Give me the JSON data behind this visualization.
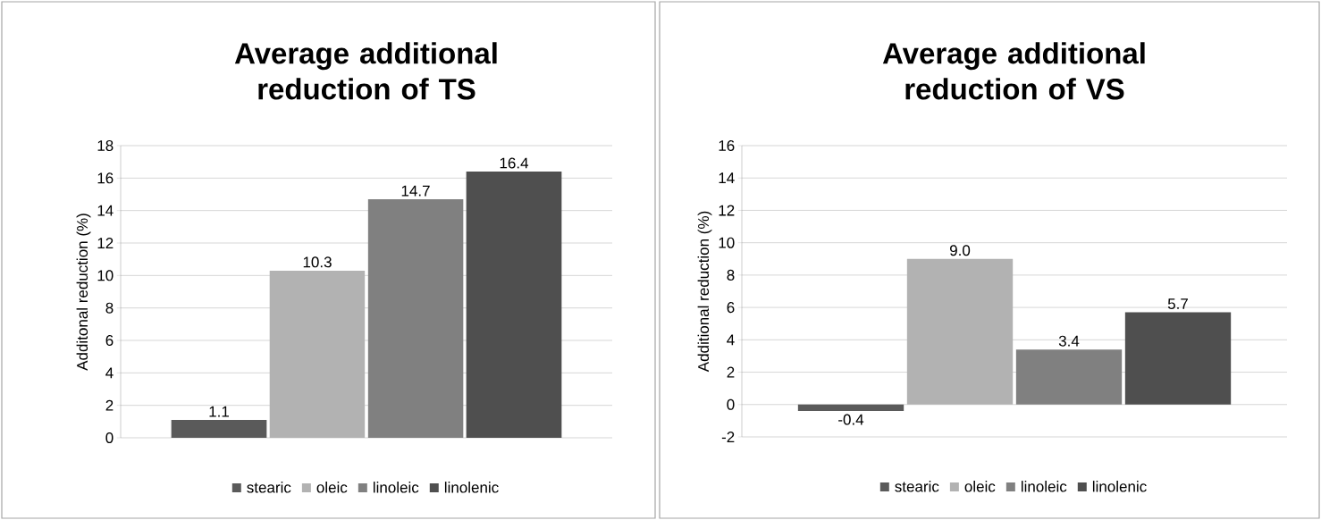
{
  "chart_data": [
    {
      "type": "bar",
      "title": "Average additional reduction of TS",
      "ylabel": "Additonal reduction (%)",
      "categories": [
        null
      ],
      "series": [
        {
          "name": "stearic",
          "color": "#5a5a5a",
          "values": [
            1.1
          ],
          "value_labels": [
            "1.1"
          ]
        },
        {
          "name": "oleic",
          "color": "#b2b2b2",
          "values": [
            10.3
          ],
          "value_labels": [
            "10.3"
          ]
        },
        {
          "name": "linoleic",
          "color": "#808080",
          "values": [
            14.7
          ],
          "value_labels": [
            "14.7"
          ]
        },
        {
          "name": "linolenic",
          "color": "#4f4f4f",
          "values": [
            16.4
          ],
          "value_labels": [
            "16.4"
          ]
        }
      ],
      "ylim": [
        0,
        18
      ],
      "yticks": [
        0,
        2,
        4,
        6,
        8,
        10,
        12,
        14,
        16,
        18
      ],
      "grid": "y",
      "legend": "bottom"
    },
    {
      "type": "bar",
      "title": "Average additional reduction of VS",
      "ylabel": "Additional reduction (%)",
      "categories": [
        null
      ],
      "series": [
        {
          "name": "stearic",
          "color": "#5a5a5a",
          "values": [
            -0.4
          ],
          "value_labels": [
            "-0.4"
          ]
        },
        {
          "name": "oleic",
          "color": "#b2b2b2",
          "values": [
            9.0
          ],
          "value_labels": [
            "9.0"
          ]
        },
        {
          "name": "linoleic",
          "color": "#808080",
          "values": [
            3.4
          ],
          "value_labels": [
            "3.4"
          ]
        },
        {
          "name": "linolenic",
          "color": "#4f4f4f",
          "values": [
            5.7
          ],
          "value_labels": [
            "5.7"
          ]
        }
      ],
      "ylim": [
        -2,
        16
      ],
      "yticks": [
        -2,
        0,
        2,
        4,
        6,
        8,
        10,
        12,
        14,
        16
      ],
      "grid": "y",
      "legend": "bottom"
    }
  ]
}
